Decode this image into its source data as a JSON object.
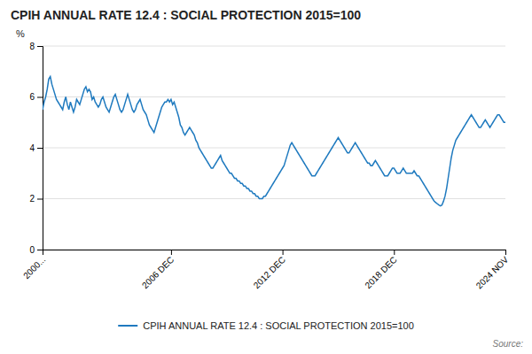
{
  "chart_data": {
    "type": "line",
    "title": "CPIH ANNUAL RATE 12.4 : SOCIAL PROTECTION 2015=100",
    "ylabel": "%",
    "annotations": [
      "Source:"
    ],
    "legend": "bottom",
    "grid": true,
    "ylim": [
      0,
      8
    ],
    "yticks": [
      0,
      2,
      4,
      6,
      8
    ],
    "categories": [
      "2000...",
      null,
      null,
      null,
      null,
      null,
      null,
      null,
      null,
      null,
      null,
      null,
      null,
      null,
      null,
      null,
      null,
      null,
      null,
      null,
      null,
      null,
      null,
      null,
      null,
      null,
      null,
      null,
      null,
      null,
      null,
      null,
      null,
      null,
      null,
      null,
      null,
      null,
      null,
      null,
      null,
      null,
      null,
      null,
      null,
      null,
      null,
      null,
      null,
      null,
      null,
      null,
      null,
      null,
      null,
      null,
      null,
      null,
      null,
      null,
      null,
      null,
      null,
      null,
      null,
      null,
      null,
      null,
      null,
      null,
      null,
      null,
      null,
      null,
      null,
      null,
      null,
      null,
      null,
      null,
      null,
      null,
      null,
      "2006 DEC",
      null,
      null,
      null,
      null,
      null,
      null,
      null,
      null,
      null,
      null,
      null,
      null,
      null,
      null,
      null,
      null,
      null,
      null,
      null,
      null,
      null,
      null,
      null,
      null,
      null,
      null,
      null,
      null,
      null,
      null,
      null,
      null,
      null,
      null,
      null,
      null,
      null,
      null,
      null,
      null,
      null,
      null,
      null,
      null,
      null,
      null,
      null,
      null,
      null,
      null,
      null,
      null,
      null,
      null,
      null,
      null,
      null,
      null,
      null,
      null,
      null,
      null,
      null,
      null,
      null,
      null,
      null,
      null,
      null,
      null,
      null,
      "2012 DEC",
      null,
      null,
      null,
      null,
      null,
      null,
      null,
      null,
      null,
      null,
      null,
      null,
      null,
      null,
      null,
      null,
      null,
      null,
      null,
      null,
      null,
      null,
      null,
      null,
      null,
      null,
      null,
      null,
      null,
      null,
      null,
      null,
      null,
      null,
      null,
      null,
      null,
      null,
      null,
      null,
      null,
      null,
      null,
      null,
      null,
      null,
      null,
      null,
      null,
      null,
      null,
      null,
      null,
      null,
      null,
      null,
      null,
      null,
      null,
      null,
      null,
      null,
      null,
      null,
      null,
      null,
      null,
      null,
      null,
      null,
      null,
      "2018 DEC",
      null,
      null,
      null,
      null,
      null,
      null,
      null,
      null,
      null,
      null,
      null,
      null,
      null,
      null,
      null,
      null,
      null,
      null,
      null,
      null,
      null,
      null,
      null,
      null,
      null,
      null,
      null,
      null,
      null,
      null,
      null,
      null,
      null,
      null,
      null,
      null,
      null,
      null,
      null,
      null,
      null,
      null,
      null,
      null,
      null,
      null,
      null,
      null,
      null,
      null,
      null,
      null,
      null,
      null,
      null,
      null,
      null,
      null,
      null,
      null,
      null,
      null,
      null,
      null,
      null,
      null,
      null,
      null,
      null,
      null,
      null,
      "2024 NOV"
    ],
    "series": [
      {
        "name": "CPIH ANNUAL RATE 12.4 : SOCIAL PROTECTION 2015=100",
        "color": "#1f7abf",
        "values": [
          5.5,
          5.8,
          6.0,
          6.3,
          6.7,
          6.8,
          6.5,
          6.3,
          6.1,
          5.9,
          5.8,
          5.7,
          5.6,
          5.5,
          5.8,
          6.0,
          5.7,
          5.5,
          5.8,
          5.6,
          5.4,
          5.6,
          5.9,
          5.8,
          5.7,
          5.9,
          6.1,
          6.3,
          6.4,
          6.2,
          6.3,
          6.2,
          5.9,
          6.0,
          5.8,
          5.7,
          5.6,
          5.7,
          5.9,
          6.0,
          5.8,
          5.6,
          5.5,
          5.4,
          5.6,
          5.8,
          6.0,
          6.1,
          5.9,
          5.7,
          5.5,
          5.4,
          5.5,
          5.7,
          5.9,
          6.1,
          5.9,
          5.7,
          5.5,
          5.4,
          5.5,
          5.7,
          5.8,
          5.9,
          5.7,
          5.5,
          5.4,
          5.3,
          5.1,
          4.9,
          4.8,
          4.7,
          4.6,
          4.8,
          5.0,
          5.2,
          5.4,
          5.6,
          5.7,
          5.8,
          5.8,
          5.9,
          5.8,
          5.9,
          5.7,
          5.8,
          5.6,
          5.4,
          5.2,
          4.9,
          4.8,
          4.6,
          4.5,
          4.6,
          4.7,
          4.8,
          4.7,
          4.6,
          4.5,
          4.3,
          4.2,
          4.0,
          3.9,
          3.8,
          3.7,
          3.6,
          3.5,
          3.4,
          3.3,
          3.2,
          3.2,
          3.3,
          3.4,
          3.5,
          3.6,
          3.7,
          3.5,
          3.4,
          3.3,
          3.2,
          3.1,
          3.0,
          3.0,
          2.9,
          2.8,
          2.8,
          2.7,
          2.7,
          2.6,
          2.6,
          2.5,
          2.5,
          2.4,
          2.4,
          2.3,
          2.3,
          2.2,
          2.2,
          2.1,
          2.1,
          2.0,
          2.0,
          2.0,
          2.1,
          2.1,
          2.2,
          2.3,
          2.4,
          2.5,
          2.6,
          2.7,
          2.8,
          2.9,
          3.0,
          3.1,
          3.2,
          3.3,
          3.5,
          3.7,
          3.9,
          4.1,
          4.2,
          4.1,
          4.0,
          3.9,
          3.8,
          3.7,
          3.6,
          3.5,
          3.4,
          3.3,
          3.2,
          3.1,
          3.0,
          2.9,
          2.9,
          2.9,
          3.0,
          3.1,
          3.2,
          3.3,
          3.4,
          3.5,
          3.6,
          3.7,
          3.8,
          3.9,
          4.0,
          4.1,
          4.2,
          4.3,
          4.4,
          4.3,
          4.2,
          4.1,
          4.0,
          3.9,
          3.8,
          3.8,
          3.9,
          4.0,
          4.1,
          4.2,
          4.1,
          4.0,
          3.9,
          3.8,
          3.7,
          3.6,
          3.5,
          3.4,
          3.4,
          3.3,
          3.3,
          3.4,
          3.5,
          3.4,
          3.3,
          3.2,
          3.1,
          3.0,
          2.9,
          2.9,
          2.9,
          3.0,
          3.1,
          3.2,
          3.2,
          3.1,
          3.0,
          3.0,
          3.0,
          3.1,
          3.2,
          3.1,
          3.0,
          3.0,
          3.0,
          3.0,
          3.0,
          3.1,
          3.0,
          2.9,
          2.9,
          2.8,
          2.7,
          2.6,
          2.5,
          2.4,
          2.3,
          2.2,
          2.1,
          2.0,
          1.9,
          1.85,
          1.8,
          1.75,
          1.72,
          1.75,
          1.9,
          2.1,
          2.4,
          2.8,
          3.2,
          3.6,
          3.9,
          4.1,
          4.3,
          4.4,
          4.5,
          4.6,
          4.7,
          4.8,
          4.9,
          5.0,
          5.1,
          5.2,
          5.3,
          5.2,
          5.1,
          5.0,
          4.9,
          4.8,
          4.8,
          4.9,
          5.0,
          5.1,
          5.0,
          4.9,
          4.8,
          4.9,
          5.0,
          5.1,
          5.2,
          5.3,
          5.3,
          5.2,
          5.1,
          5.0,
          5.0
        ]
      }
    ]
  }
}
